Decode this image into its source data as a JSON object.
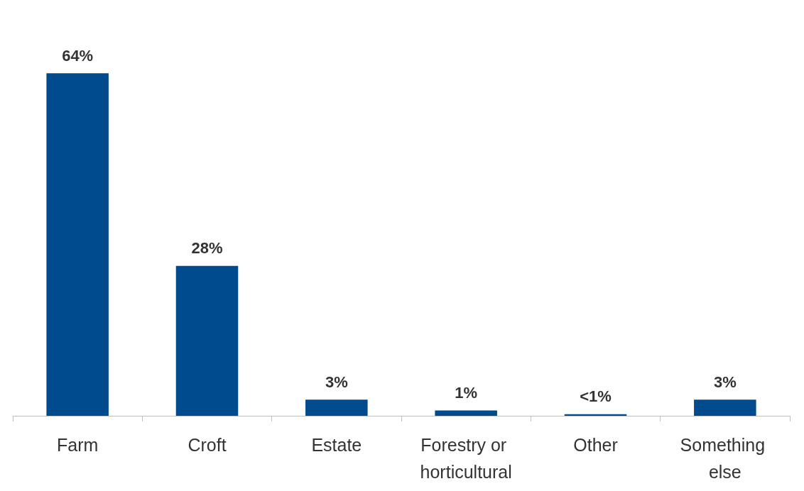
{
  "chart_data": {
    "type": "bar",
    "categories": [
      "Farm",
      "Croft",
      "Estate",
      "Forestry or horticultural",
      "Other",
      "Something else"
    ],
    "values": [
      64,
      28,
      3,
      1,
      0.3,
      3
    ],
    "value_labels": [
      "64%",
      "28%",
      "3%",
      "1%",
      "<1%",
      "3%"
    ],
    "color": "#004b8d",
    "grid": false
  }
}
